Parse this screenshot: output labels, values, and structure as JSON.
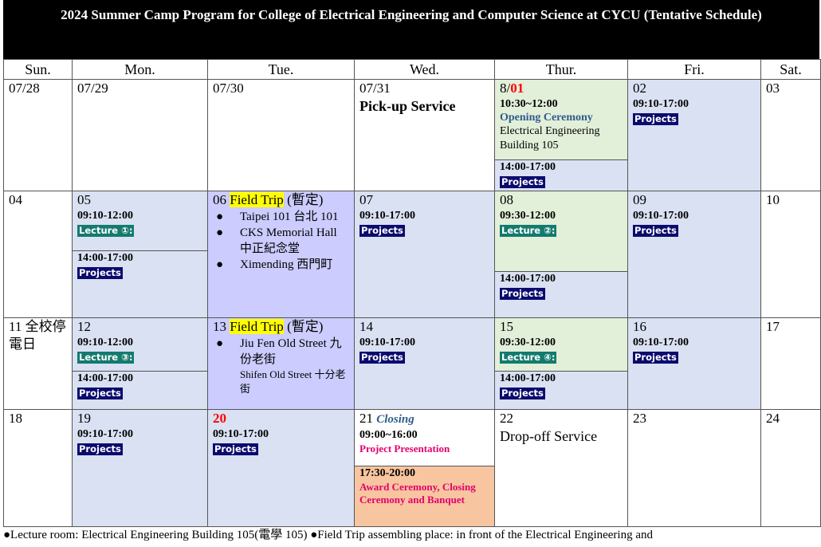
{
  "title": "2024 Summer Camp Program for College of Electrical Engineering and Computer Science at CYCU (Tentative Schedule)",
  "days": [
    "Sun.",
    "Mon.",
    "Tue.",
    "Wed.",
    "Thur.",
    "Fri.",
    "Sat."
  ],
  "w1": {
    "sun": "07/28",
    "mon": "07/29",
    "tue": "07/30",
    "wed": "07/31",
    "wed_event": "Pick-up Service",
    "thu_prefix": "8/",
    "thu_red": "01",
    "thu_time": "10:30~12:00",
    "thu_event": "Opening Ceremony",
    "thu_place": "Electrical Engineering Building 105",
    "thu_time2": "14:00-17:00",
    "thu_tag2": "Projects",
    "fri": "02",
    "fri_time": "09:10-17:00",
    "fri_tag": "Projects",
    "sat": "03"
  },
  "w2": {
    "sun": "04",
    "mon": "05",
    "mon_time": "09:10-12:00",
    "mon_tag": "Lecture ①:",
    "mon_time2": "14:00-17:00",
    "mon_tag2": "Projects",
    "tue": "06",
    "tue_trip": "Field Trip",
    "tue_note": "(暫定)",
    "tue_items": [
      "Taipei 101 台北 101",
      "CKS Memorial Hall 中正紀念堂",
      "Ximending 西門町"
    ],
    "wed": "07",
    "wed_time": "09:10-17:00",
    "wed_tag": "Projects",
    "thu": "08",
    "thu_time": "09:30-12:00",
    "thu_tag": "Lecture ②:",
    "thu_time2": "14:00-17:00",
    "thu_tag2": "Projects",
    "fri": "09",
    "fri_time": "09:10-17:00",
    "fri_tag": "Projects",
    "sat": "10"
  },
  "w3": {
    "sun": "11 全校停電日",
    "mon": "12",
    "mon_time": "09:10-12:00",
    "mon_tag": "Lecture ③:",
    "mon_time2": "14:00-17:00",
    "mon_tag2": "Projects",
    "tue": "13",
    "tue_trip": "Field Trip",
    "tue_note": "(暫定)",
    "tue_item1": "Jiu Fen Old Street 九份老街",
    "tue_item2": "Shifen Old Street 十分老街",
    "wed": "14",
    "wed_time": "09:10-17:00",
    "wed_tag": "Projects",
    "thu": "15",
    "thu_time": "09:30-12:00",
    "thu_tag": "Lecture ④:",
    "thu_time2": "14:00-17:00",
    "thu_tag2": "Projects",
    "fri": "16",
    "fri_time": "09:10-17:00",
    "fri_tag": "Projects",
    "sat": "17"
  },
  "w4": {
    "sun": "18",
    "mon": "19",
    "mon_time": "09:10-17:00",
    "mon_tag": "Projects",
    "tue": "20",
    "tue_time": "09:10-17:00",
    "tue_tag": "Projects",
    "wed": "21",
    "wed_closing": "Closing",
    "wed_time": "09:00~16:00",
    "wed_event": "Project Presentation",
    "wed_time2": "17:30-20:00",
    "wed_event2": "Award Ceremony, Closing Ceremony and Banquet",
    "thu": "22",
    "thu_event": "Drop-off Service",
    "fri": "23",
    "sat": "24"
  },
  "footer": "●Lecture room: Electrical Engineering Building 105(電學 105) ●Field Trip assembling place: in front of the Electrical Engineering and"
}
